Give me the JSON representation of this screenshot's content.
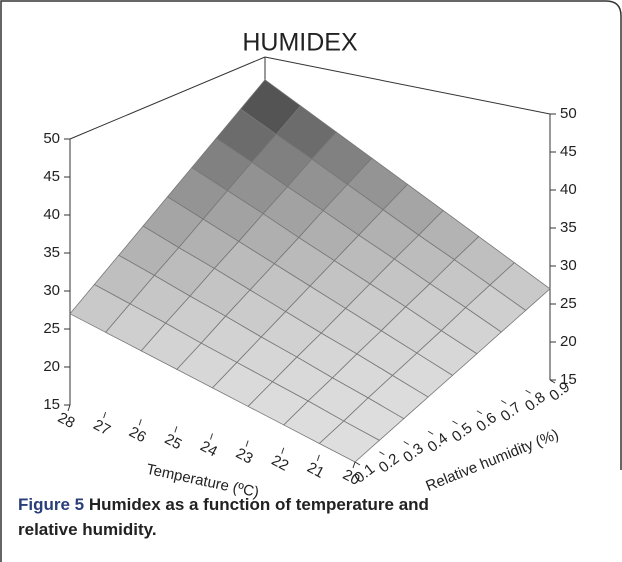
{
  "chart_data": {
    "type": "surface",
    "title": "HUMIDEX",
    "xlabel": "Temperature (ºC)",
    "ylabel": "Relative humidity (%)",
    "x": [
      20,
      21,
      22,
      23,
      24,
      25,
      26,
      27,
      28
    ],
    "y": [
      0.1,
      0.2,
      0.3,
      0.4,
      0.5,
      0.6,
      0.7,
      0.8,
      0.9
    ],
    "z": [
      [
        15,
        16.5,
        18,
        19.5,
        21,
        22.5,
        24,
        25.5,
        27
      ],
      [
        16.5,
        18.1,
        19.8,
        21.4,
        23,
        24.6,
        26.3,
        27.9,
        29.5
      ],
      [
        18,
        19.8,
        21.5,
        23.3,
        25,
        26.8,
        28.5,
        30.3,
        32
      ],
      [
        19.5,
        21.4,
        23.3,
        25.1,
        27,
        28.9,
        30.8,
        32.6,
        34.5
      ],
      [
        21,
        23,
        25,
        27,
        29,
        31,
        33,
        35,
        37
      ],
      [
        22.5,
        24.6,
        26.8,
        28.9,
        31,
        33.1,
        35.3,
        37.4,
        39.5
      ],
      [
        24,
        26.3,
        28.5,
        30.8,
        33,
        35.3,
        37.5,
        39.8,
        42
      ],
      [
        25.5,
        27.9,
        30.3,
        32.6,
        35,
        37.4,
        39.8,
        42.1,
        44.5
      ],
      [
        27,
        29.5,
        32,
        34.5,
        37,
        39.5,
        42,
        44.5,
        47
      ]
    ],
    "xlim": [
      20,
      28
    ],
    "xticks": [
      20,
      21,
      22,
      23,
      24,
      25,
      26,
      27,
      28
    ],
    "ylim": [
      0.1,
      0.9
    ],
    "yticks": [
      0.1,
      0.2,
      0.3,
      0.4,
      0.5,
      0.6,
      0.7,
      0.8,
      0.9
    ],
    "zlim": [
      15,
      50
    ],
    "zticks": [
      15,
      20,
      25,
      30,
      35,
      40,
      45,
      50
    ]
  },
  "caption": {
    "label": "Figure 5",
    "text": "Humidex as a function of temperature and relative humidity."
  }
}
